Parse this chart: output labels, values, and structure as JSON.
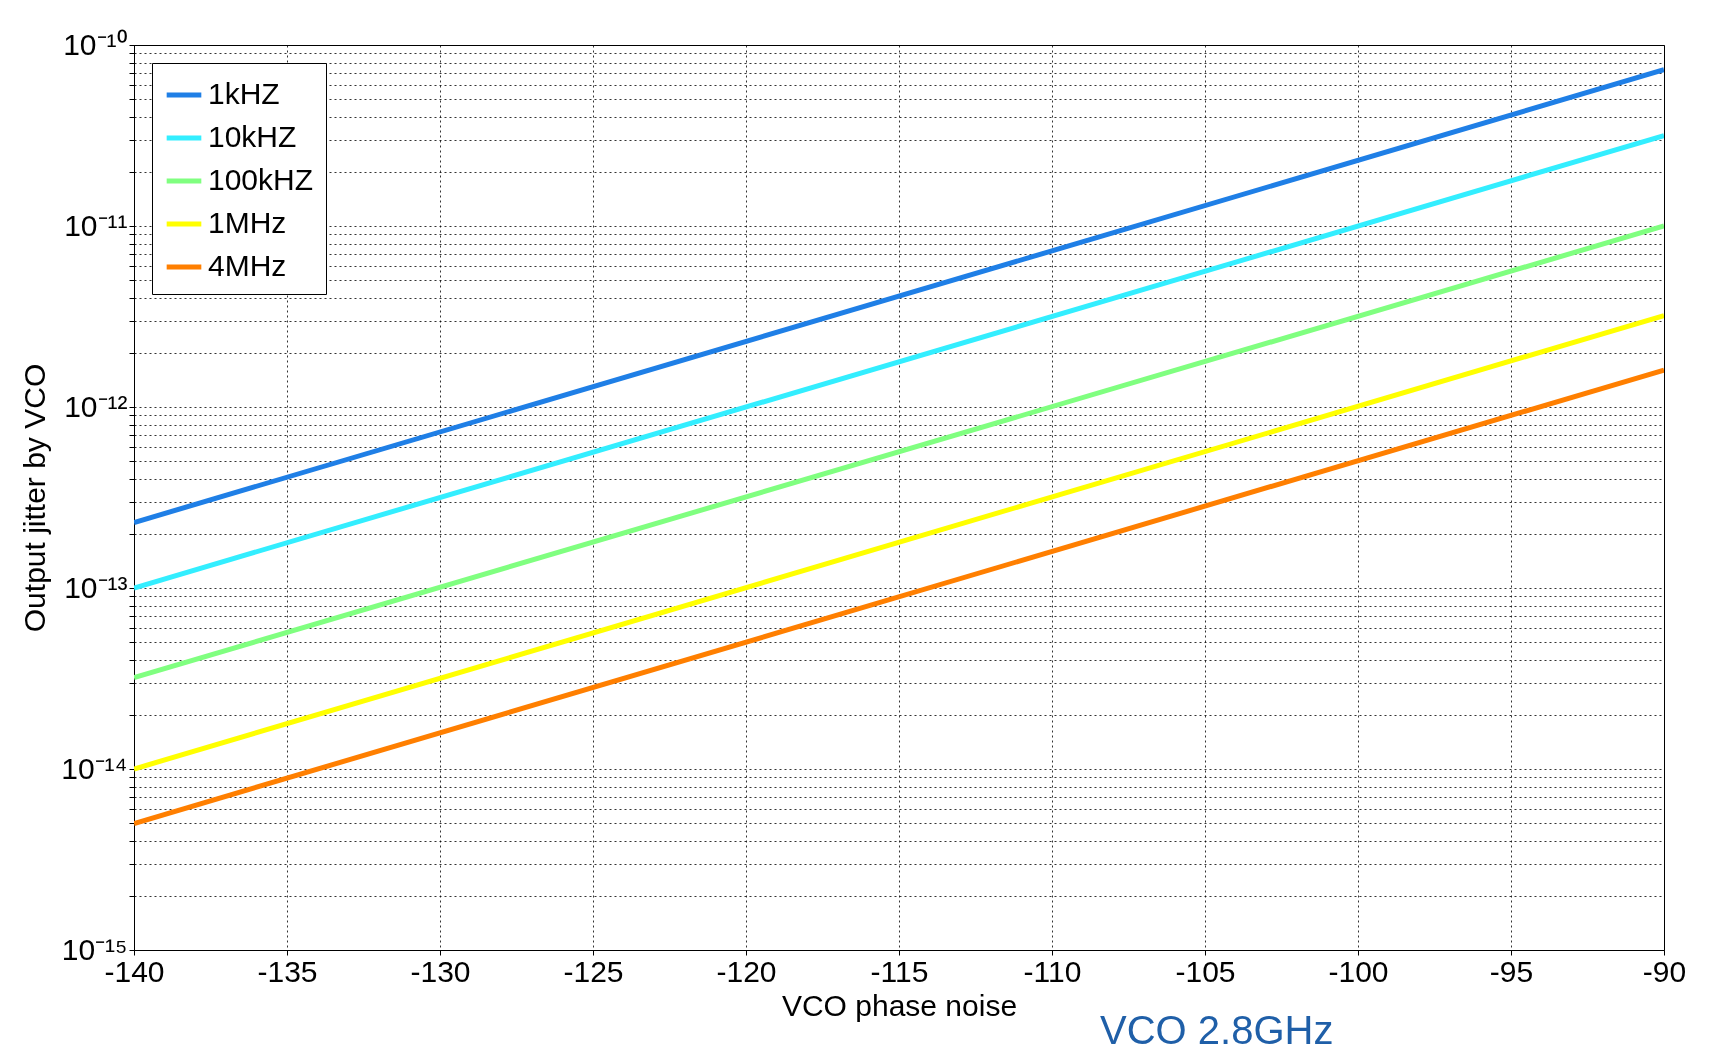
{
  "chart_data": {
    "type": "line",
    "xlabel": "VCO phase noise",
    "ylabel": "Output jitter by VCO",
    "x": [
      -140,
      -90
    ],
    "series": [
      {
        "name": "1kHZ",
        "color": "#1f7fe6",
        "values": [
          2.3e-13,
          7.3e-11
        ]
      },
      {
        "name": "10kHZ",
        "color": "#33eeff",
        "values": [
          1e-13,
          3.16e-11
        ]
      },
      {
        "name": "100kHZ",
        "color": "#80ff80",
        "values": [
          3.2e-14,
          1e-11
        ]
      },
      {
        "name": "1MHz",
        "color": "#ffff00",
        "values": [
          1e-14,
          3.2e-12
        ]
      },
      {
        "name": "4MHz",
        "color": "#ff7f00",
        "values": [
          5e-15,
          1.6e-12
        ]
      }
    ],
    "log": "y",
    "xlim": [
      -140,
      -90
    ],
    "xticks": [
      -140,
      -135,
      -130,
      -125,
      -120,
      -115,
      -110,
      -105,
      -100,
      -95,
      -90
    ],
    "ylim": [
      1e-15,
      1e-10
    ],
    "yticks": [
      {
        "value": 1e-15,
        "label": "10⁻¹⁵"
      },
      {
        "value": 2e-15,
        "label": null
      },
      {
        "value": 3e-15,
        "label": null
      },
      {
        "value": 4e-15,
        "label": null
      },
      {
        "value": 5e-15,
        "label": null
      },
      {
        "value": 6e-15,
        "label": null
      },
      {
        "value": 7e-15,
        "label": null
      },
      {
        "value": 8e-15,
        "label": null
      },
      {
        "value": 9e-15,
        "label": null
      },
      {
        "value": 1e-14,
        "label": "10⁻¹⁴"
      },
      {
        "value": 2e-14,
        "label": null
      },
      {
        "value": 3e-14,
        "label": null
      },
      {
        "value": 4e-14,
        "label": null
      },
      {
        "value": 5e-14,
        "label": null
      },
      {
        "value": 6e-14,
        "label": null
      },
      {
        "value": 7e-14,
        "label": null
      },
      {
        "value": 8e-14,
        "label": null
      },
      {
        "value": 9e-14,
        "label": null
      },
      {
        "value": 1e-13,
        "label": "10⁻¹³"
      },
      {
        "value": 2e-13,
        "label": null
      },
      {
        "value": 3e-13,
        "label": null
      },
      {
        "value": 4e-13,
        "label": null
      },
      {
        "value": 5e-13,
        "label": null
      },
      {
        "value": 6e-13,
        "label": null
      },
      {
        "value": 7e-13,
        "label": null
      },
      {
        "value": 8e-13,
        "label": null
      },
      {
        "value": 9e-13,
        "label": null
      },
      {
        "value": 1e-12,
        "label": "10⁻¹²"
      },
      {
        "value": 2e-12,
        "label": null
      },
      {
        "value": 3e-12,
        "label": null
      },
      {
        "value": 4e-12,
        "label": null
      },
      {
        "value": 5e-12,
        "label": null
      },
      {
        "value": 6e-12,
        "label": null
      },
      {
        "value": 7e-12,
        "label": null
      },
      {
        "value": 8e-12,
        "label": null
      },
      {
        "value": 9e-12,
        "label": null
      },
      {
        "value": 1e-11,
        "label": "10⁻¹¹"
      },
      {
        "value": 2e-11,
        "label": null
      },
      {
        "value": 3e-11,
        "label": null
      },
      {
        "value": 4e-11,
        "label": null
      },
      {
        "value": 5e-11,
        "label": null
      },
      {
        "value": 6e-11,
        "label": null
      },
      {
        "value": 7e-11,
        "label": null
      },
      {
        "value": 8e-11,
        "label": null
      },
      {
        "value": 9e-11,
        "label": null
      },
      {
        "value": 1e-10,
        "label": "10⁻¹⁰"
      }
    ],
    "grid": true,
    "legend": "top left",
    "line_style": "solid",
    "marker": "none",
    "annotations": [
      "VCO 2.8GHz"
    ]
  }
}
